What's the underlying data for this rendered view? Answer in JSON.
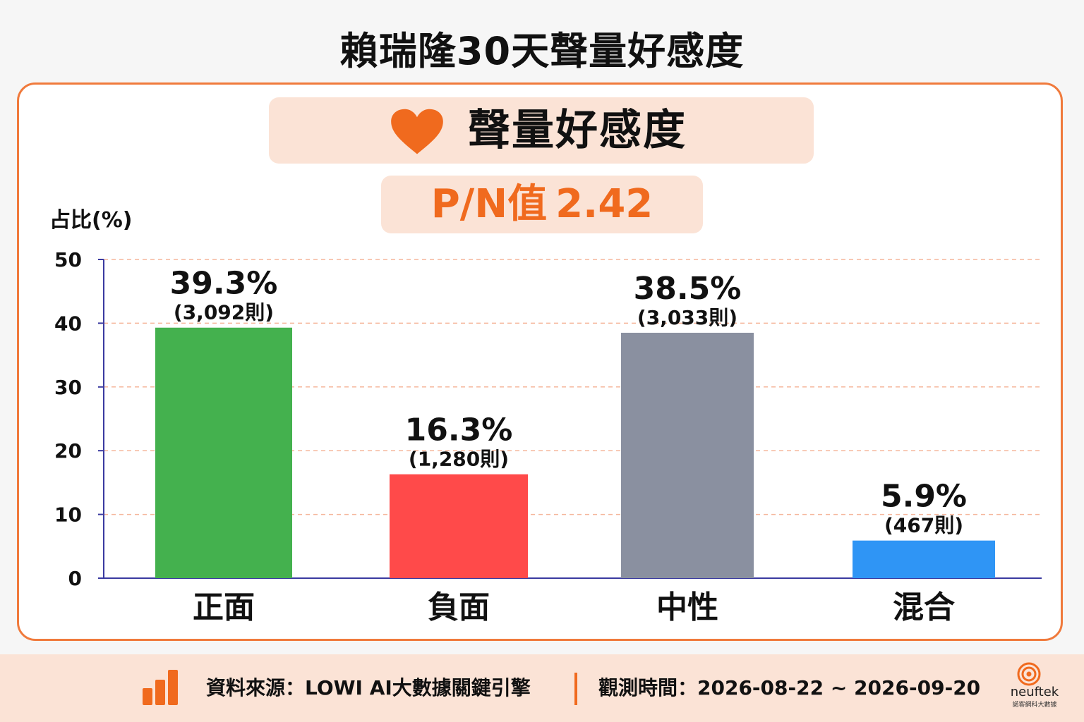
{
  "title": "賴瑞隆30天聲量好感度",
  "banner": {
    "icon": "heart-icon",
    "label": "聲量好感度"
  },
  "pn": {
    "label": "P/N值",
    "value": "2.42"
  },
  "colors": {
    "accent": "#f06a1e",
    "border": "#f07a3c",
    "positive": "#44b14e",
    "negative": "#ff4a4a",
    "neutral": "#8a90a0",
    "mixed": "#2f95f5"
  },
  "chart_data": {
    "type": "bar",
    "ylabel": "占比(%)",
    "ylim": [
      0,
      50
    ],
    "yticks": [
      0,
      10,
      20,
      30,
      40,
      50
    ],
    "grid": true,
    "categories": [
      "正面",
      "負面",
      "中性",
      "混合"
    ],
    "values": [
      39.3,
      16.3,
      38.5,
      5.9
    ],
    "value_labels": [
      "39.3%",
      "16.3%",
      "38.5%",
      "5.9%"
    ],
    "count_labels": [
      "(3,092則)",
      "(1,280則)",
      "(3,033則)",
      "(467則)"
    ]
  },
  "footer": {
    "icon": "bar-chart-icon",
    "source": "資料來源：LOWI AI大數據關鍵引擎",
    "period": "觀測時間：2026-08-22 ~ 2026-09-20",
    "logo_name": "neuftek",
    "logo_sub": "諾客網科大數據"
  }
}
